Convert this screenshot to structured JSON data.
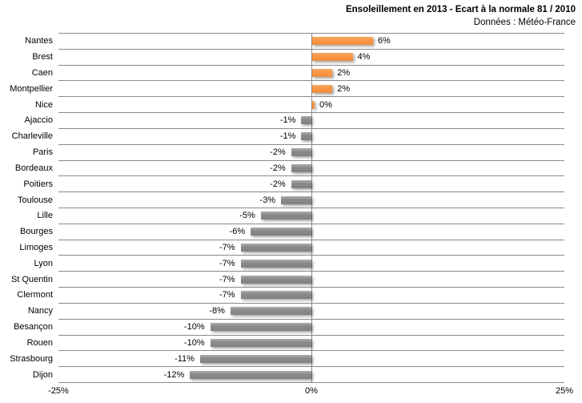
{
  "chart_data": {
    "type": "bar",
    "orientation": "horizontal",
    "title": "Ensoleillement en 2013 - Ecart à la normale 81 / 2010",
    "subtitle": "Données : Météo-France",
    "categories": [
      "Nantes",
      "Brest",
      "Caen",
      "Montpellier",
      "Nice",
      "Ajaccio",
      "Charleville",
      "Paris",
      "Bordeaux",
      "Poitiers",
      "Toulouse",
      "Lille",
      "Bourges",
      "Limoges",
      "Lyon",
      "St Quentin",
      "Clermont",
      "Nancy",
      "Besançon",
      "Rouen",
      "Strasbourg",
      "Dijon"
    ],
    "values": [
      6,
      4,
      2,
      2,
      0,
      -1,
      -1,
      -2,
      -2,
      -2,
      -3,
      -5,
      -6,
      -7,
      -7,
      -7,
      -7,
      -8,
      -10,
      -10,
      -11,
      -12
    ],
    "value_labels": [
      "6%",
      "4%",
      "2%",
      "2%",
      "0%",
      "-1%",
      "-1%",
      "-2%",
      "-2%",
      "-2%",
      "-3%",
      "-5%",
      "-6%",
      "-7%",
      "-7%",
      "-7%",
      "-7%",
      "-8%",
      "-10%",
      "-10%",
      "-11%",
      "-12%"
    ],
    "xlabel": "",
    "ylabel": "",
    "xlim": [
      -25,
      25
    ],
    "x_ticks": [
      "-25%",
      "0%",
      "25%"
    ],
    "x_tick_values": [
      -25,
      0,
      25
    ],
    "grid": "category-separator-lines",
    "legend": "none",
    "colors": {
      "positive_bar": "#F79646",
      "negative_bar": "#858585",
      "gridline": "#8A8A8A",
      "text": "#000000",
      "background": "#FFFFFF"
    }
  }
}
